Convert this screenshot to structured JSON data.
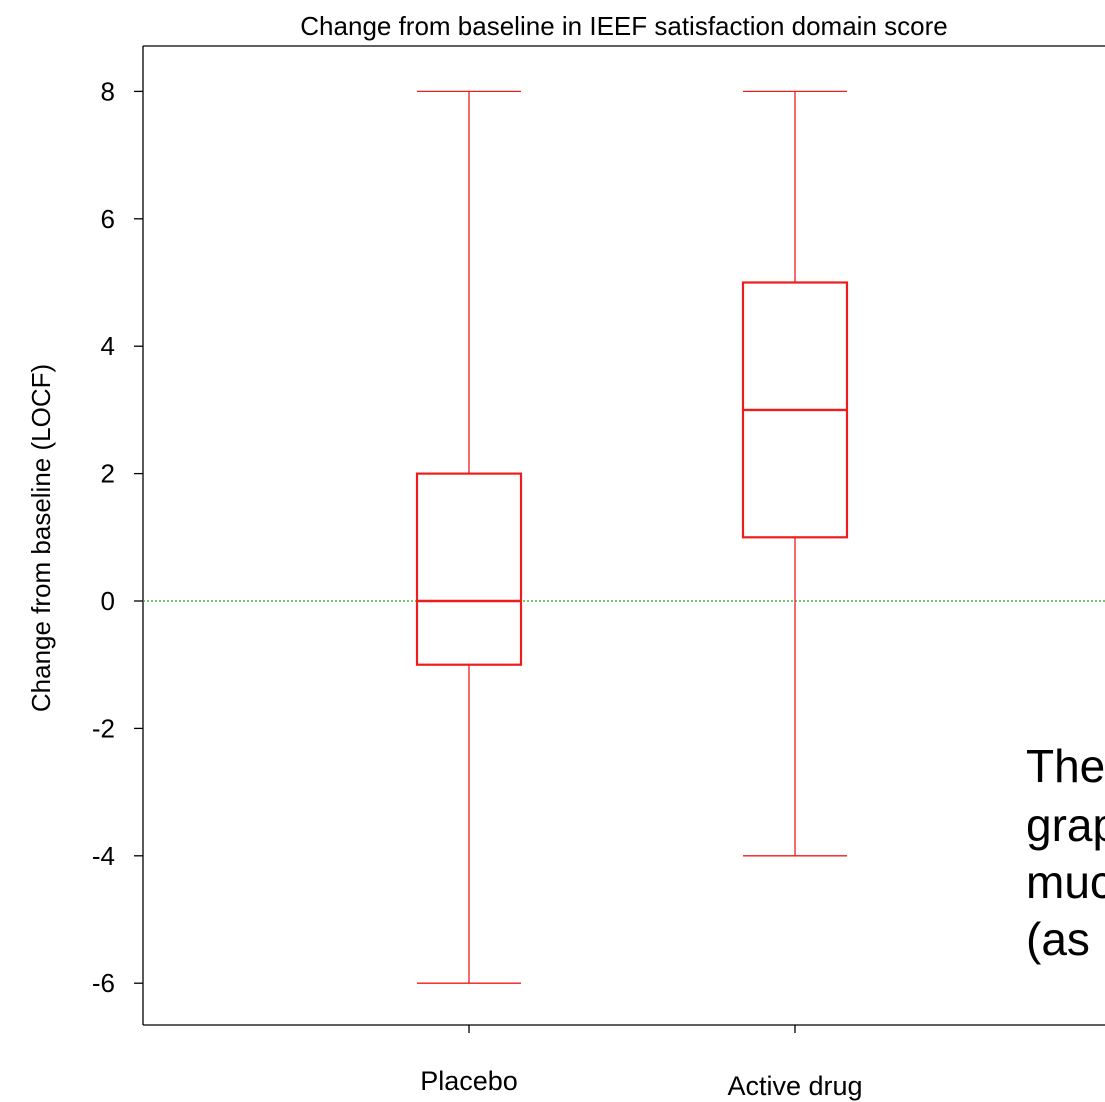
{
  "chart_data": {
    "type": "boxplot",
    "title": "Change from baseline in IEEF satisfaction domain score",
    "xlabel": "",
    "ylabel": "Change from baseline (LOCF)",
    "ylim": [
      -6.65,
      8.7
    ],
    "yticks": [
      -6,
      -4,
      -2,
      0,
      2,
      4,
      6,
      8
    ],
    "categories": [
      "Placebo",
      "Active drug"
    ],
    "boxes": [
      {
        "category": "Placebo",
        "whisker_low": -6,
        "q1": -1,
        "median": 0,
        "q3": 2,
        "whisker_high": 8
      },
      {
        "category": "Active drug",
        "whisker_low": -4,
        "q1": 1,
        "median": 3,
        "q3": 5,
        "whisker_high": 8
      }
    ],
    "reference_line": {
      "y": 0,
      "style": "dotted",
      "color": "#22aa22"
    },
    "box_color": "#ee1c1c",
    "grid": false
  },
  "overlay_text": [
    "The",
    "grap",
    "muc",
    "(as"
  ]
}
